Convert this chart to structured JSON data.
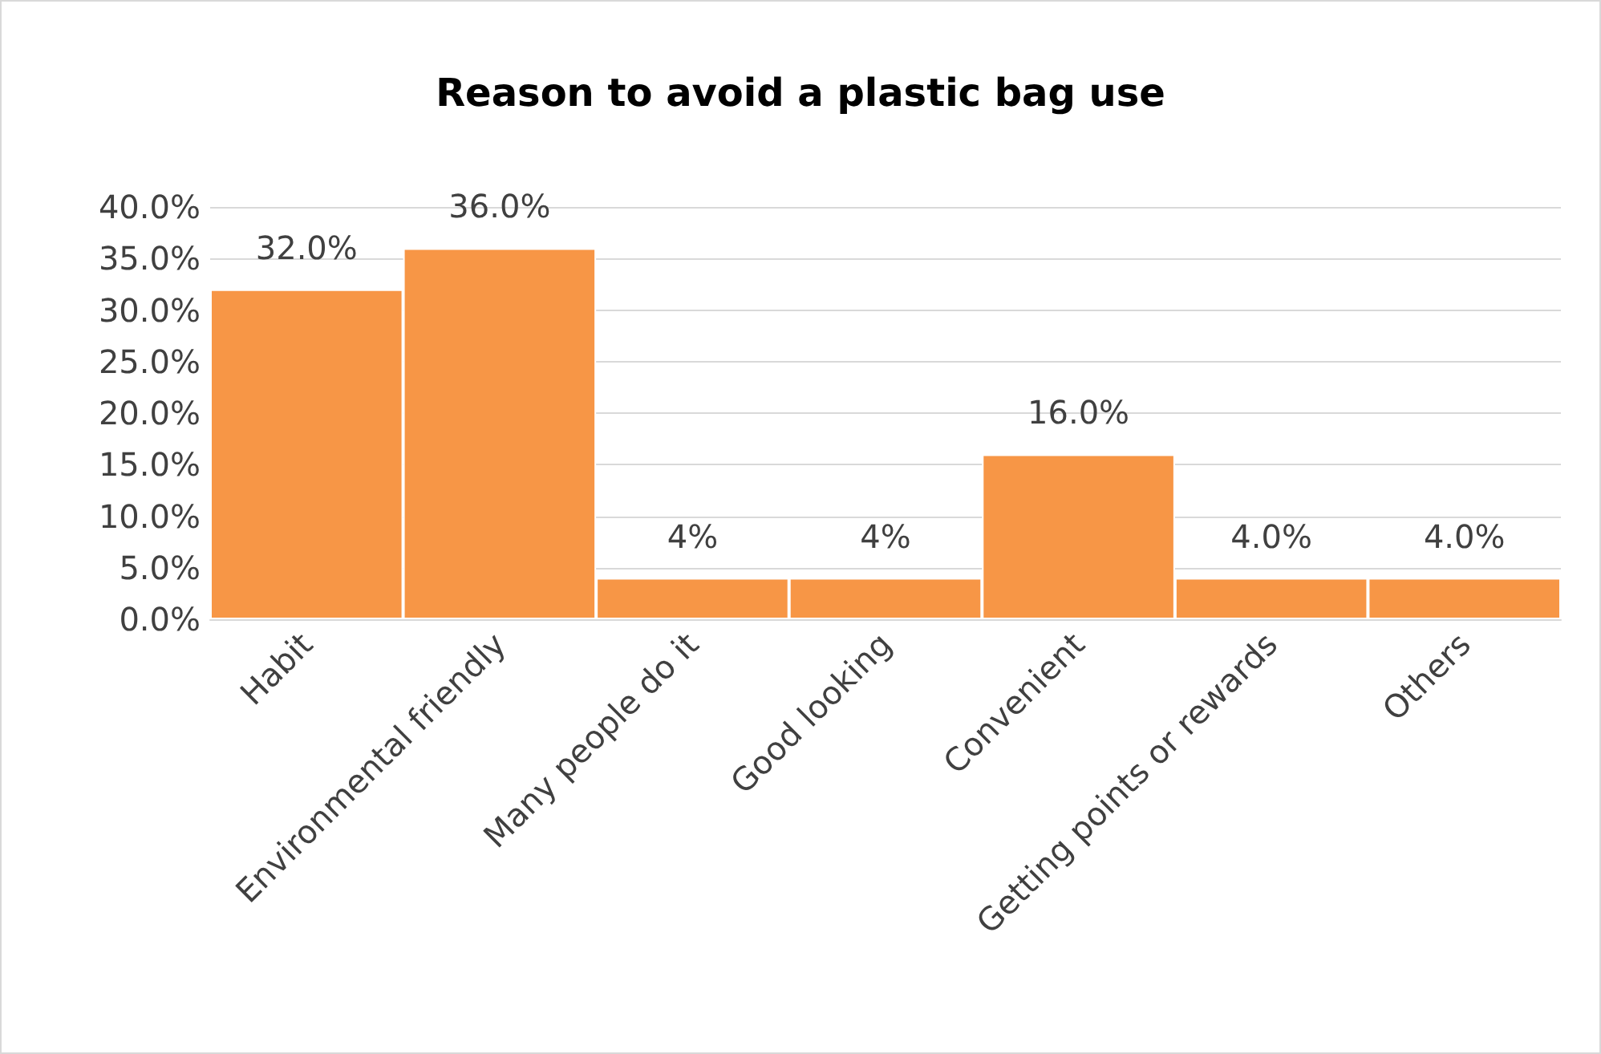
{
  "chart_data": {
    "type": "bar",
    "title": "Reason to avoid a plastic bag use",
    "categories": [
      "Habit",
      "Environmental friendly",
      "Many people do it",
      "Good looking",
      "Convenient",
      "Getting points or rewards",
      "Others"
    ],
    "values": [
      32,
      36,
      4,
      4,
      16,
      4,
      4
    ],
    "value_labels": [
      "32.0%",
      "36.0%",
      "4%",
      "4%",
      "16.0%",
      "4.0%",
      "4.0%"
    ],
    "color": "#f79646",
    "ylim": [
      0,
      40
    ],
    "yticks": [
      {
        "value": 0,
        "label": "0.0%"
      },
      {
        "value": 5,
        "label": "5.0%"
      },
      {
        "value": 10,
        "label": "10.0%"
      },
      {
        "value": 15,
        "label": "15.0%"
      },
      {
        "value": 20,
        "label": "20.0%"
      },
      {
        "value": 25,
        "label": "25.0%"
      },
      {
        "value": 30,
        "label": "30.0%"
      },
      {
        "value": 35,
        "label": "35.0%"
      },
      {
        "value": 40,
        "label": "40.0%"
      }
    ],
    "grid": "y"
  }
}
